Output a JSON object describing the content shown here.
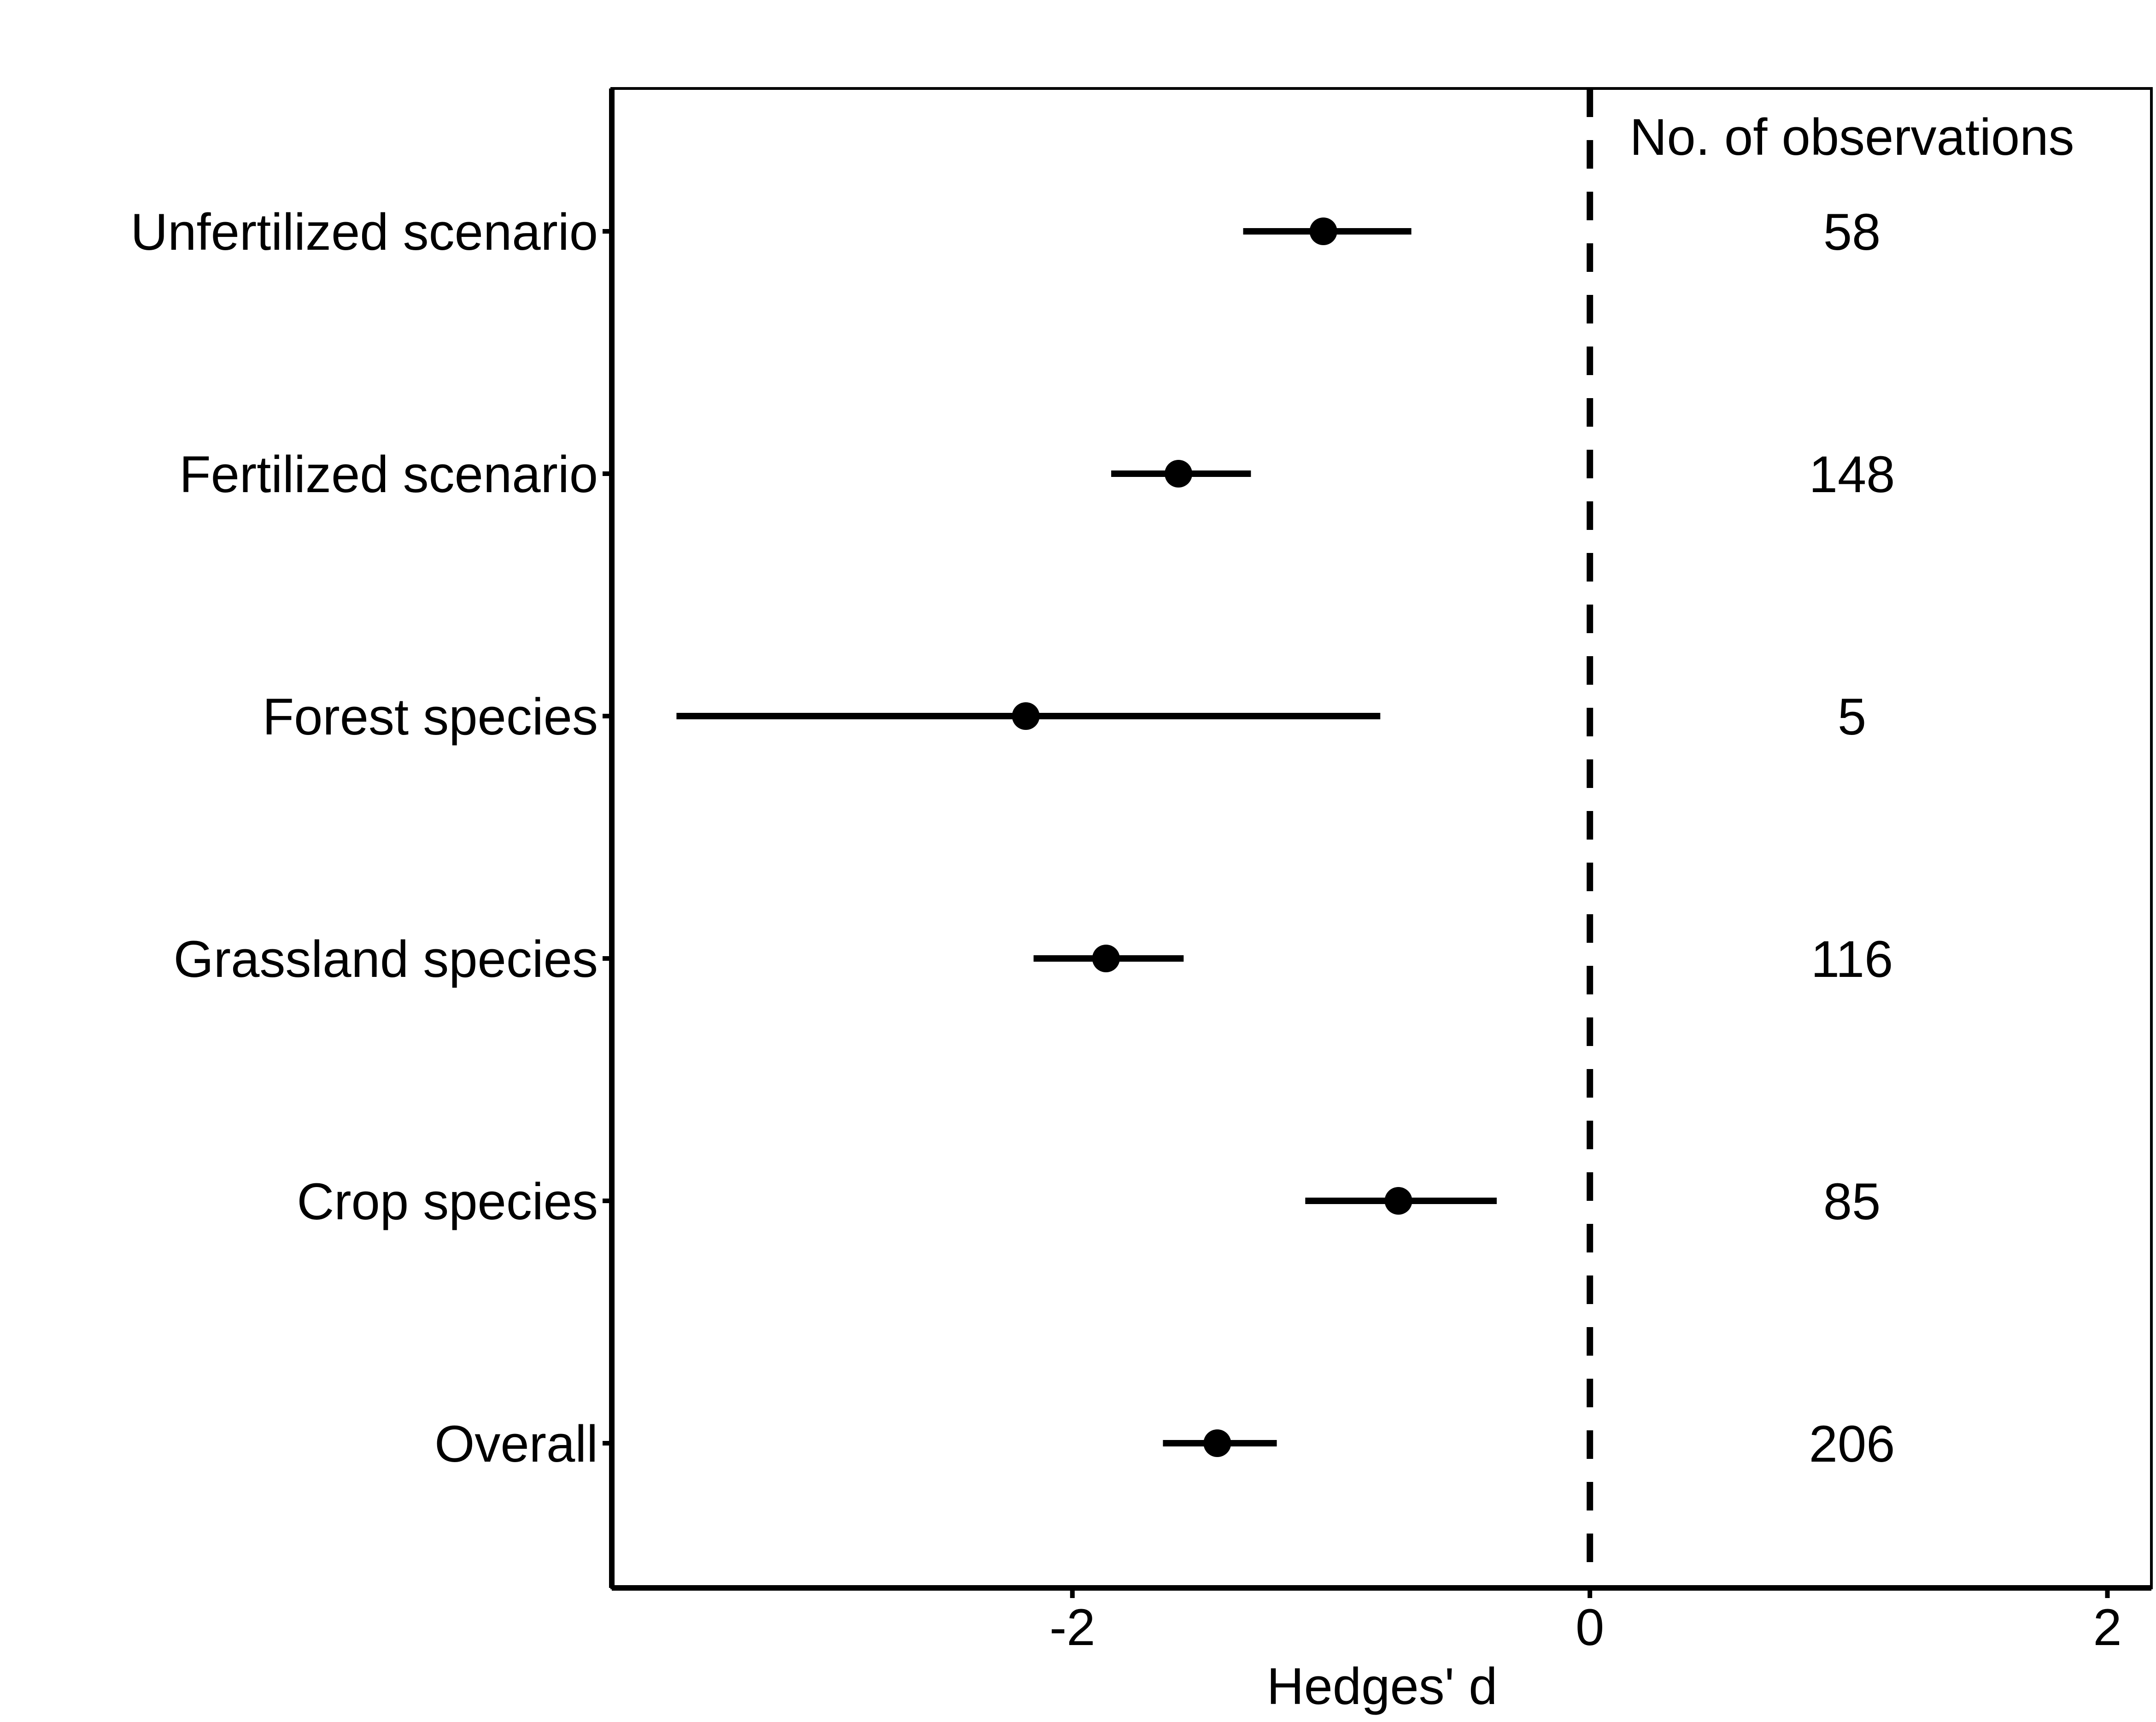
{
  "chart_data": {
    "type": "forest",
    "categories": [
      "Unfertilized scenario",
      "Fertilized scenario",
      "Forest species",
      "Grassland species",
      "Crop species",
      "Overall"
    ],
    "estimates": [
      -1.03,
      -1.59,
      -2.18,
      -1.87,
      -0.74,
      -1.44
    ],
    "ci_low": [
      -1.34,
      -1.85,
      -3.53,
      -2.15,
      -1.1,
      -1.65
    ],
    "ci_high": [
      -0.69,
      -1.31,
      -0.81,
      -1.57,
      -0.36,
      -1.21
    ],
    "observations": [
      58,
      148,
      5,
      116,
      85,
      206
    ],
    "observations_header": "No. of observations",
    "xlabel": "Hedges' d",
    "x_ticks": [
      -2,
      0,
      2
    ],
    "x_tick_labels": [
      "-2",
      "0",
      "2"
    ],
    "xlim": [
      -3.78,
      2.17
    ],
    "reference_line": 0
  }
}
